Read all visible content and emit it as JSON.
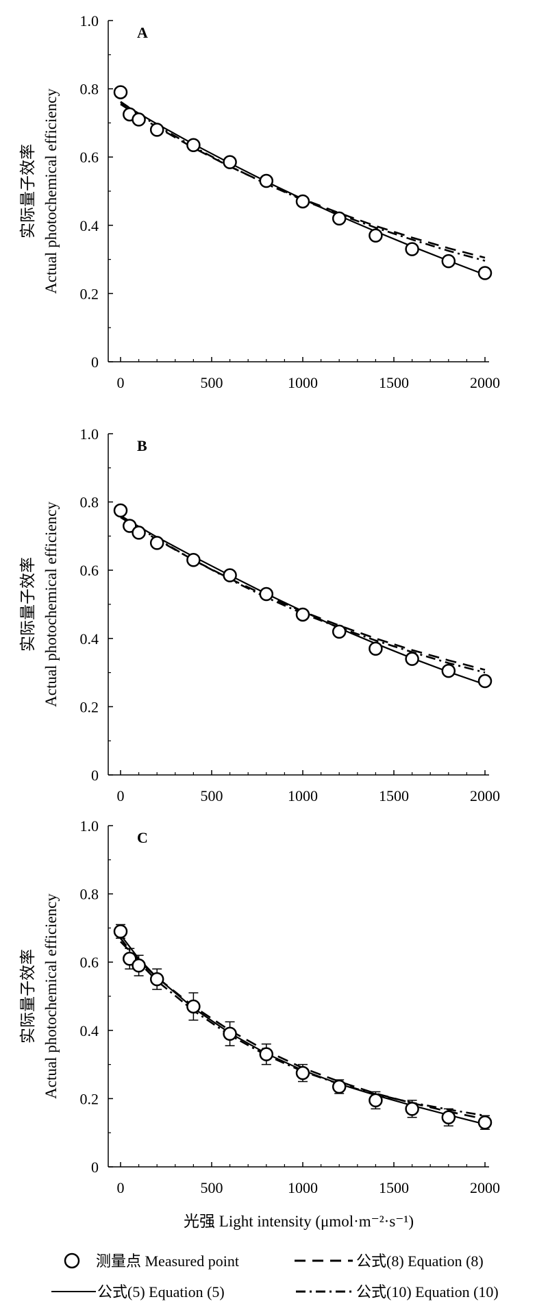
{
  "figure": {
    "xlabel": "光强 Light intensity (μmol·m⁻²·s⁻¹)",
    "ylabel_line1": "实际量子效率",
    "ylabel_line2": "Actual photochemical efficiency"
  },
  "legend": {
    "measured": "测量点 Measured point",
    "eq5": "公式(5) Equation (5)",
    "eq8": "公式(8) Equation (8)",
    "eq10": "公式(10) Equation (10)"
  },
  "chart_data": [
    {
      "type": "scatter",
      "panel": "A",
      "xlim": [
        0,
        2000
      ],
      "ylim": [
        0,
        1.0
      ],
      "xticks": [
        0,
        500,
        1000,
        1500,
        2000
      ],
      "yticks": [
        "0",
        "0.2",
        "0.4",
        "0.6",
        "0.8",
        "1.0"
      ],
      "measured": {
        "x": [
          0,
          50,
          100,
          200,
          400,
          600,
          800,
          1000,
          1200,
          1400,
          1600,
          1800,
          2000
        ],
        "y": [
          0.79,
          0.725,
          0.71,
          0.68,
          0.635,
          0.585,
          0.53,
          0.47,
          0.42,
          0.37,
          0.33,
          0.295,
          0.26
        ],
        "err": [
          0.005,
          0.01,
          0.005,
          0.005,
          0.005,
          0.005,
          0.005,
          0.005,
          0.005,
          0.005,
          0.005,
          0.005,
          0.005
        ]
      },
      "series": [
        {
          "name": "公式(5) Equation (5)",
          "style": "solid",
          "x": [
            0,
            100,
            200,
            400,
            600,
            800,
            1000,
            1200,
            1400,
            1600,
            1800,
            2000
          ],
          "y": [
            0.76,
            0.728,
            0.697,
            0.638,
            0.582,
            0.528,
            0.477,
            0.428,
            0.382,
            0.338,
            0.296,
            0.255
          ]
        },
        {
          "name": "公式(8) Equation (8)",
          "style": "dashed",
          "x": [
            0,
            100,
            200,
            400,
            600,
            800,
            1000,
            1200,
            1400,
            1600,
            1800,
            2000
          ],
          "y": [
            0.755,
            0.72,
            0.688,
            0.627,
            0.572,
            0.522,
            0.477,
            0.436,
            0.398,
            0.364,
            0.333,
            0.305
          ]
        },
        {
          "name": "公式(10) Equation (10)",
          "style": "dashdot",
          "x": [
            0,
            100,
            200,
            400,
            600,
            800,
            1000,
            1200,
            1400,
            1600,
            1800,
            2000
          ],
          "y": [
            0.762,
            0.726,
            0.692,
            0.63,
            0.573,
            0.521,
            0.474,
            0.432,
            0.393,
            0.358,
            0.325,
            0.296
          ]
        }
      ]
    },
    {
      "type": "scatter",
      "panel": "B",
      "xlim": [
        0,
        2000
      ],
      "ylim": [
        0,
        1.0
      ],
      "xticks": [
        0,
        500,
        1000,
        1500,
        2000
      ],
      "yticks": [
        "0",
        "0.2",
        "0.4",
        "0.6",
        "0.8",
        "1.0"
      ],
      "measured": {
        "x": [
          0,
          50,
          100,
          200,
          400,
          600,
          800,
          1000,
          1200,
          1400,
          1600,
          1800,
          2000
        ],
        "y": [
          0.775,
          0.73,
          0.71,
          0.68,
          0.63,
          0.585,
          0.53,
          0.47,
          0.42,
          0.37,
          0.34,
          0.305,
          0.275
        ],
        "err": [
          0.01,
          0.005,
          0.005,
          0.005,
          0.005,
          0.005,
          0.005,
          0.005,
          0.005,
          0.005,
          0.005,
          0.005,
          0.005
        ]
      },
      "series": [
        {
          "name": "公式(5) Equation (5)",
          "style": "solid",
          "x": [
            0,
            100,
            200,
            400,
            600,
            800,
            1000,
            1200,
            1400,
            1600,
            1800,
            2000
          ],
          "y": [
            0.76,
            0.728,
            0.697,
            0.64,
            0.585,
            0.531,
            0.48,
            0.43,
            0.385,
            0.342,
            0.302,
            0.265
          ]
        },
        {
          "name": "公式(8) Equation (8)",
          "style": "dashed",
          "x": [
            0,
            100,
            200,
            400,
            600,
            800,
            1000,
            1200,
            1400,
            1600,
            1800,
            2000
          ],
          "y": [
            0.755,
            0.722,
            0.69,
            0.63,
            0.575,
            0.525,
            0.479,
            0.438,
            0.4,
            0.366,
            0.336,
            0.308
          ]
        },
        {
          "name": "公式(10) Equation (10)",
          "style": "dashdot",
          "x": [
            0,
            100,
            200,
            400,
            600,
            800,
            1000,
            1200,
            1400,
            1600,
            1800,
            2000
          ],
          "y": [
            0.76,
            0.725,
            0.692,
            0.63,
            0.573,
            0.52,
            0.473,
            0.432,
            0.394,
            0.36,
            0.328,
            0.3
          ]
        }
      ]
    },
    {
      "type": "scatter",
      "panel": "C",
      "xlim": [
        0,
        2000
      ],
      "ylim": [
        0,
        1.0
      ],
      "xticks": [
        0,
        500,
        1000,
        1500,
        2000
      ],
      "yticks": [
        "0",
        "0.2",
        "0.4",
        "0.6",
        "0.8",
        "1.0"
      ],
      "measured": {
        "x": [
          0,
          50,
          100,
          200,
          400,
          600,
          800,
          1000,
          1200,
          1400,
          1600,
          1800,
          2000
        ],
        "y": [
          0.69,
          0.61,
          0.59,
          0.55,
          0.47,
          0.39,
          0.33,
          0.275,
          0.235,
          0.195,
          0.17,
          0.145,
          0.13
        ],
        "err": [
          0.02,
          0.03,
          0.03,
          0.03,
          0.04,
          0.035,
          0.03,
          0.025,
          0.02,
          0.025,
          0.025,
          0.025,
          0.02
        ]
      },
      "series": [
        {
          "name": "公式(5) Equation (5)",
          "style": "solid",
          "x": [
            0,
            100,
            200,
            400,
            600,
            800,
            1000,
            1200,
            1400,
            1600,
            1800,
            2000
          ],
          "y": [
            0.68,
            0.61,
            0.555,
            0.465,
            0.392,
            0.332,
            0.283,
            0.243,
            0.21,
            0.18,
            0.152,
            0.125
          ]
        },
        {
          "name": "公式(8) Equation (8)",
          "style": "dashed",
          "x": [
            0,
            100,
            200,
            400,
            600,
            800,
            1000,
            1200,
            1400,
            1600,
            1800,
            2000
          ],
          "y": [
            0.66,
            0.605,
            0.555,
            0.47,
            0.4,
            0.34,
            0.29,
            0.25,
            0.215,
            0.187,
            0.162,
            0.14
          ]
        },
        {
          "name": "公式(10) Equation (10)",
          "style": "dashdot",
          "x": [
            0,
            100,
            200,
            400,
            600,
            800,
            1000,
            1200,
            1400,
            1600,
            1800,
            2000
          ],
          "y": [
            0.67,
            0.6,
            0.545,
            0.458,
            0.386,
            0.327,
            0.28,
            0.243,
            0.213,
            0.188,
            0.168,
            0.15
          ]
        }
      ]
    }
  ]
}
